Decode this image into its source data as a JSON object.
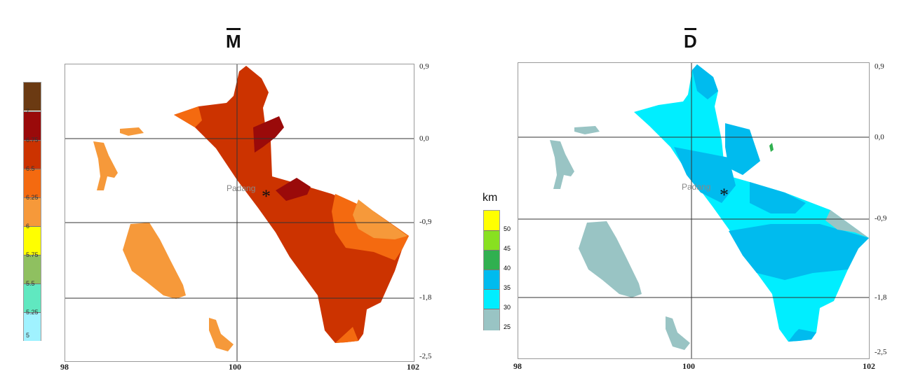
{
  "panels": [
    {
      "title": "M",
      "legend": {
        "unit": "",
        "entries": [
          {
            "label": "7",
            "color": "#6b3a12"
          },
          {
            "label": "6.75",
            "color": "#9a0a0a"
          },
          {
            "label": "6.5",
            "color": "#cc3300"
          },
          {
            "label": "6.25",
            "color": "#f46a10"
          },
          {
            "label": "6",
            "color": "#f6993a"
          },
          {
            "label": "5.75",
            "color": "#ffff00"
          },
          {
            "label": "5.5",
            "color": "#8fc060"
          },
          {
            "label": "5.25",
            "color": "#60e8c0"
          },
          {
            "label": "5",
            "color": "#a0f2ff"
          }
        ]
      },
      "city": "Padang",
      "x_ticks": [
        "98",
        "100",
        "102"
      ],
      "y_ticks": [
        "0,9",
        "0,0",
        "-0,9",
        "-1,8",
        "-2,5"
      ],
      "colors": {
        "base": "#cc3300",
        "high": "#9a0a0a",
        "mid": "#f46a10",
        "low": "#f6993a",
        "island": "#f6993a"
      }
    },
    {
      "title": "D",
      "legend": {
        "unit": "km",
        "entries": [
          {
            "label": "50",
            "color": "#ffff00"
          },
          {
            "label": "45",
            "color": "#88e020"
          },
          {
            "label": "40",
            "color": "#30b050"
          },
          {
            "label": "35",
            "color": "#00bbee"
          },
          {
            "label": "30",
            "color": "#00eeff"
          },
          {
            "label": "25",
            "color": "#99c4c4"
          }
        ]
      },
      "city": "Padang",
      "x_ticks": [
        "98",
        "100",
        "102"
      ],
      "y_ticks": [
        "0,9",
        "0,0",
        "-0,9",
        "-1,8",
        "-2,5"
      ],
      "colors": {
        "base": "#00eeff",
        "high": "#00bbee",
        "mid": "#00bbee",
        "low": "#99c4c4",
        "island": "#99c4c4"
      }
    }
  ]
}
